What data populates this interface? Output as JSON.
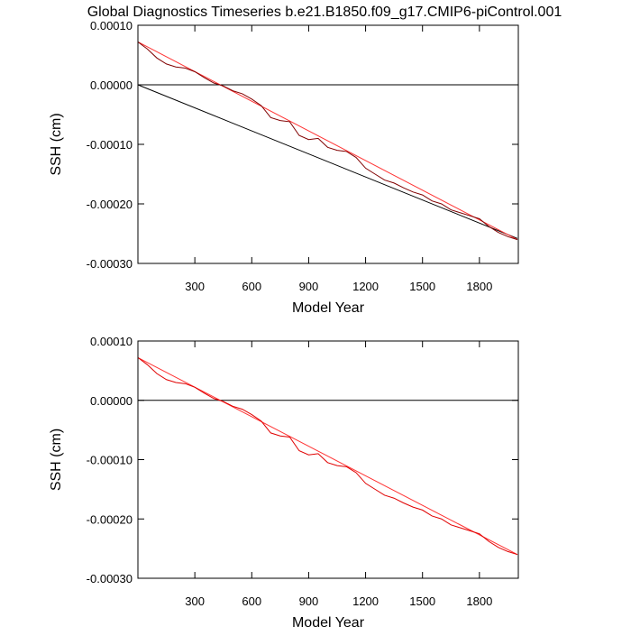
{
  "chart_data": [
    {
      "type": "line",
      "title": "Global Diagnostics Timeseries b.e21.B1850.f09_g17.CMIP6-piControl.001",
      "xlabel": "Model Year",
      "ylabel": "SSH (cm)",
      "xlim": [
        0,
        2005
      ],
      "xticks": [
        300,
        600,
        900,
        1200,
        1500,
        1800
      ],
      "ylim": [
        -0.0003,
        0.0001
      ],
      "yticks": [
        {
          "value": 0.0001,
          "label": "0.00010"
        },
        {
          "value": 0,
          "label": "0.00000"
        },
        {
          "value": -0.0001,
          "label": "-0.00010"
        },
        {
          "value": -0.0002,
          "label": "-0.00020"
        },
        {
          "value": -0.0003,
          "label": "-0.00030"
        }
      ],
      "series": [
        {
          "color": "#000000",
          "x": [
            0,
            2005
          ],
          "values": [
            0,
            0
          ]
        },
        {
          "color": "#000000",
          "x": [
            0,
            2000
          ],
          "values": [
            0,
            -0.000258
          ]
        },
        {
          "color": "#ff3333",
          "x": [
            0,
            2000
          ],
          "values": [
            7.2e-05,
            -0.00026
          ]
        },
        {
          "color": "#800000",
          "x": [
            0,
            50,
            100,
            150,
            200,
            250,
            300,
            350,
            400,
            450,
            500,
            550,
            600,
            650,
            700,
            750,
            800,
            850,
            900,
            950,
            1000,
            1050,
            1100,
            1150,
            1200,
            1250,
            1300,
            1350,
            1400,
            1450,
            1500,
            1550,
            1600,
            1650,
            1700,
            1750,
            1800,
            1850,
            1900,
            1950,
            2000
          ],
          "values": [
            7.2e-05,
            6e-05,
            4.5e-05,
            3.5e-05,
            3e-05,
            2.8e-05,
            2.2e-05,
            1.2e-05,
            3e-06,
            -2e-06,
            -1e-05,
            -1.5e-05,
            -2.4e-05,
            -3.5e-05,
            -5.5e-05,
            -6e-05,
            -6.2e-05,
            -8.5e-05,
            -9.2e-05,
            -9e-05,
            -0.000105,
            -0.00011,
            -0.000112,
            -0.000122,
            -0.00014,
            -0.00015,
            -0.00016,
            -0.000165,
            -0.000173,
            -0.00018,
            -0.000185,
            -0.000195,
            -0.0002,
            -0.00021,
            -0.000215,
            -0.00022,
            -0.000225,
            -0.000238,
            -0.000248,
            -0.000255,
            -0.00026
          ]
        }
      ]
    },
    {
      "type": "line",
      "xlabel": "Model Year",
      "ylabel": "SSH (cm)",
      "xlim": [
        0,
        2005
      ],
      "xticks": [
        300,
        600,
        900,
        1200,
        1500,
        1800
      ],
      "ylim": [
        -0.0003,
        0.0001
      ],
      "yticks": [
        {
          "value": 0.0001,
          "label": "0.00010"
        },
        {
          "value": 0,
          "label": "0.00000"
        },
        {
          "value": -0.0001,
          "label": "-0.00010"
        },
        {
          "value": -0.0002,
          "label": "-0.00020"
        },
        {
          "value": -0.0003,
          "label": "-0.00030"
        }
      ],
      "series": [
        {
          "color": "#000000",
          "x": [
            0,
            2005
          ],
          "values": [
            0,
            0
          ]
        },
        {
          "color": "#ff3333",
          "x": [
            0,
            2000
          ],
          "values": [
            7.2e-05,
            -0.00026
          ]
        },
        {
          "color": "#e00000",
          "x": [
            0,
            50,
            100,
            150,
            200,
            250,
            300,
            350,
            400,
            450,
            500,
            550,
            600,
            650,
            700,
            750,
            800,
            850,
            900,
            950,
            1000,
            1050,
            1100,
            1150,
            1200,
            1250,
            1300,
            1350,
            1400,
            1450,
            1500,
            1550,
            1600,
            1650,
            1700,
            1750,
            1800,
            1850,
            1900,
            1950,
            2000
          ],
          "values": [
            7.2e-05,
            6e-05,
            4.5e-05,
            3.5e-05,
            3e-05,
            2.8e-05,
            2.2e-05,
            1.2e-05,
            3e-06,
            -2e-06,
            -1e-05,
            -1.5e-05,
            -2.4e-05,
            -3.5e-05,
            -5.5e-05,
            -6e-05,
            -6.2e-05,
            -8.5e-05,
            -9.2e-05,
            -9e-05,
            -0.000105,
            -0.00011,
            -0.000112,
            -0.000122,
            -0.00014,
            -0.00015,
            -0.00016,
            -0.000165,
            -0.000173,
            -0.00018,
            -0.000185,
            -0.000195,
            -0.0002,
            -0.00021,
            -0.000215,
            -0.00022,
            -0.000225,
            -0.000238,
            -0.000248,
            -0.000255,
            -0.00026
          ]
        }
      ]
    }
  ]
}
